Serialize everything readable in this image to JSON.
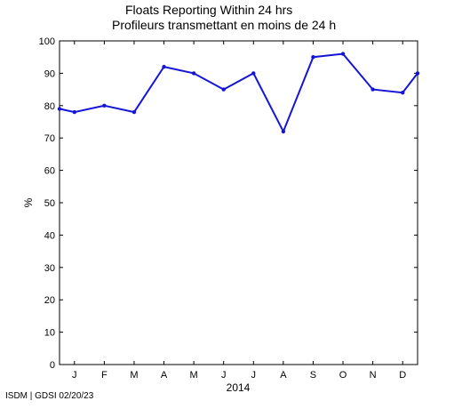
{
  "title_line1": "Floats Reporting Within 24 hrs",
  "title_line2": "Profileurs transmettant en moins de 24 h",
  "footer": "ISDM | GDSI 02/20/23",
  "line_color": "#1515d8",
  "chart_data": {
    "type": "line",
    "title": "Floats Reporting Within 24 hrs / Profileurs transmettant en moins de 24 h",
    "xlabel": "2014",
    "ylabel": "%",
    "ylim": [
      0,
      100
    ],
    "yticks": [
      0,
      10,
      20,
      30,
      40,
      50,
      60,
      70,
      80,
      90,
      100
    ],
    "xlim": [
      0,
      12
    ],
    "month_labels": [
      "J",
      "F",
      "M",
      "A",
      "M",
      "J",
      "J",
      "A",
      "S",
      "O",
      "N",
      "D"
    ],
    "grid": false,
    "series": [
      {
        "x": [
          0,
          0.5,
          1.5,
          2.5,
          3.5,
          4.5,
          5.5,
          6.5,
          7.5,
          8.5,
          9.5,
          10.5,
          11.5,
          12
        ],
        "values": [
          79,
          78,
          80,
          78,
          92,
          90,
          85,
          90,
          72,
          95,
          96,
          85,
          84,
          90
        ]
      }
    ]
  }
}
